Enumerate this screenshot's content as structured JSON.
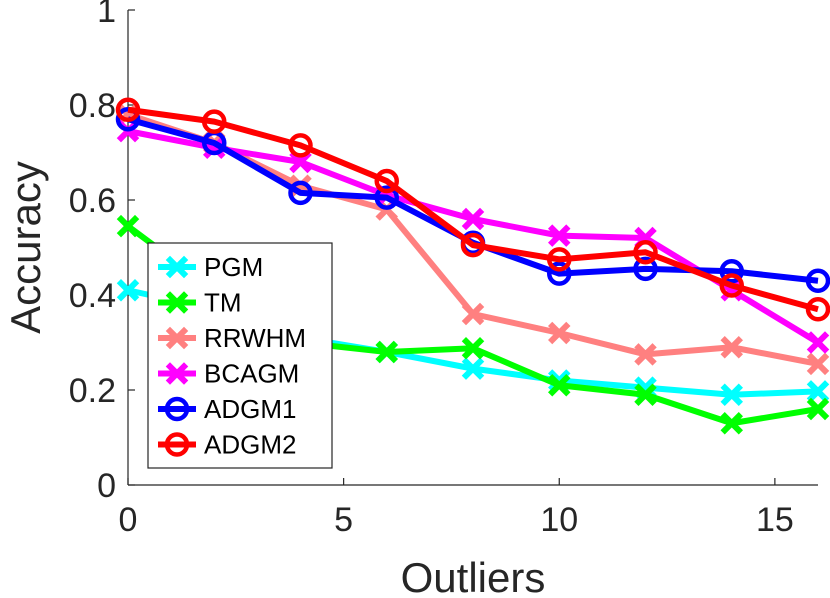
{
  "chart_data": {
    "type": "line",
    "title": "",
    "xlabel": "Outliers",
    "ylabel": "Accuracy",
    "xlim": [
      0,
      16
    ],
    "ylim": [
      0,
      1
    ],
    "xticks": [
      0,
      5,
      10,
      15
    ],
    "yticks": [
      0,
      0.2,
      0.4,
      0.6,
      0.8,
      1
    ],
    "ytick_labels": [
      "0",
      "0.2",
      "0.4",
      "0.6",
      "0.8",
      "1"
    ],
    "grid": false,
    "legend_position": "middle-left",
    "x": [
      0,
      2,
      4,
      6,
      8,
      10,
      12,
      14,
      16
    ],
    "series": [
      {
        "name": "PGM",
        "color": "#00ffff",
        "marker": "x",
        "values": [
          0.41,
          0.37,
          0.31,
          0.28,
          0.245,
          0.22,
          0.205,
          0.19,
          0.197
        ]
      },
      {
        "name": "TM",
        "color": "#00ff00",
        "marker": "x",
        "values": [
          0.545,
          0.41,
          0.3,
          0.28,
          0.288,
          0.21,
          0.19,
          0.13,
          0.16
        ]
      },
      {
        "name": "RRWHM",
        "color": "#ff8080",
        "marker": "x",
        "values": [
          0.78,
          0.72,
          0.63,
          0.58,
          0.36,
          0.32,
          0.275,
          0.29,
          0.255
        ]
      },
      {
        "name": "BCAGM",
        "color": "#ff00ff",
        "marker": "x",
        "values": [
          0.745,
          0.71,
          0.68,
          0.61,
          0.56,
          0.525,
          0.52,
          0.41,
          0.3
        ]
      },
      {
        "name": "ADGM1",
        "color": "#0000ff",
        "marker": "o",
        "values": [
          0.77,
          0.72,
          0.615,
          0.605,
          0.51,
          0.445,
          0.455,
          0.45,
          0.43
        ]
      },
      {
        "name": "ADGM2",
        "color": "#ff0000",
        "marker": "o",
        "values": [
          0.79,
          0.765,
          0.715,
          0.64,
          0.505,
          0.475,
          0.49,
          0.42,
          0.37
        ]
      }
    ]
  }
}
